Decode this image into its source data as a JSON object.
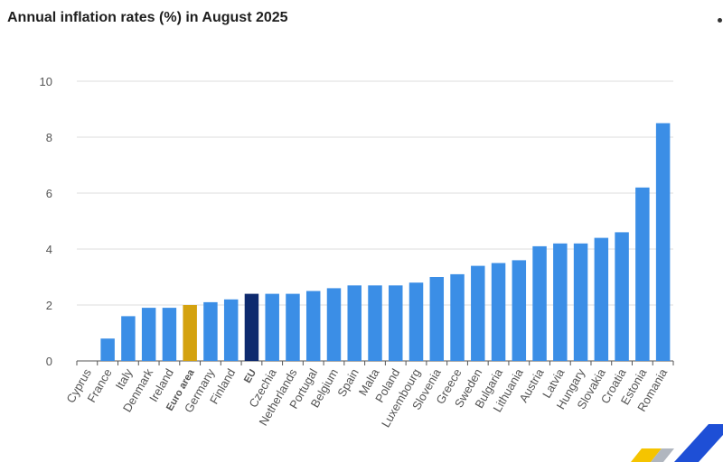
{
  "chart_data": {
    "type": "bar",
    "title": "Annual inflation rates (%) in August 2025",
    "xlabel": "",
    "ylabel": "",
    "ylim": [
      0,
      10
    ],
    "yticks": [
      0,
      2,
      4,
      6,
      8,
      10
    ],
    "grid": true,
    "categories": [
      "Cyprus",
      "France",
      "Italy",
      "Denmark",
      "Ireland",
      "Euro area",
      "Germany",
      "Finland",
      "EU",
      "Czechia",
      "Netherlands",
      "Portugal",
      "Belgium",
      "Spain",
      "Malta",
      "Poland",
      "Luxembourg",
      "Slovenia",
      "Greece",
      "Sweden",
      "Bulgaria",
      "Lithuania",
      "Austria",
      "Latvia",
      "Hungary",
      "Slovakia",
      "Croatia",
      "Estonia",
      "Romania"
    ],
    "values": [
      0.0,
      0.8,
      1.6,
      1.9,
      1.9,
      2.0,
      2.1,
      2.2,
      2.4,
      2.4,
      2.4,
      2.5,
      2.6,
      2.7,
      2.7,
      2.7,
      2.8,
      3.0,
      3.1,
      3.4,
      3.5,
      3.6,
      4.1,
      4.2,
      4.2,
      4.4,
      4.6,
      6.2,
      8.5
    ],
    "highlight": {
      "Euro area": "#d4a20f",
      "EU": "#0e2a6e"
    },
    "bold_categories": [
      "Euro area",
      "EU"
    ],
    "colors": {
      "bar": "#3b8ee6",
      "grid": "#dedede",
      "axis": "#555555",
      "text": "#555555"
    }
  }
}
